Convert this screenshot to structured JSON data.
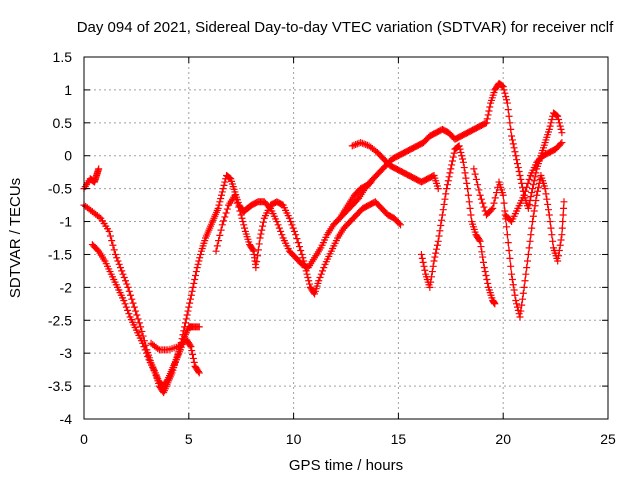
{
  "chart_data": {
    "type": "scatter",
    "title": "Day 094 of 2021, Sidereal Day-to-day VTEC variation (SDTVAR) for receiver nclf",
    "xlabel": "GPS time / hours",
    "ylabel": "SDTVAR / TECUs",
    "xlim": [
      0,
      25
    ],
    "ylim": [
      -4,
      1.5
    ],
    "xticks": [
      "0",
      "5",
      "10",
      "15",
      "20",
      "25"
    ],
    "yticks": [
      "-4",
      "-3.5",
      "-3",
      "-2.5",
      "-2",
      "-1.5",
      "-1",
      "-0.5",
      "0",
      "0.5",
      "1",
      "1.5"
    ],
    "grid": true,
    "marker": "+",
    "color": "#ff0000",
    "series": [
      {
        "points": [
          [
            0.0,
            -0.5
          ],
          [
            0.3,
            -0.35
          ],
          [
            0.5,
            -0.4
          ],
          [
            0.6,
            -0.3
          ],
          [
            0.7,
            -0.2
          ]
        ]
      },
      {
        "points": [
          [
            0.0,
            -0.75
          ],
          [
            0.4,
            -0.85
          ],
          [
            0.8,
            -0.95
          ],
          [
            1.2,
            -1.15
          ],
          [
            1.5,
            -1.5
          ],
          [
            1.8,
            -1.75
          ],
          [
            2.1,
            -2.0
          ],
          [
            2.4,
            -2.3
          ],
          [
            2.7,
            -2.6
          ],
          [
            3.0,
            -2.95
          ],
          [
            3.2,
            -3.15
          ],
          [
            3.4,
            -3.3
          ],
          [
            3.6,
            -3.45
          ],
          [
            3.8,
            -3.5
          ],
          [
            4.0,
            -3.4
          ],
          [
            4.2,
            -3.25
          ],
          [
            4.4,
            -3.1
          ],
          [
            4.6,
            -2.9
          ],
          [
            4.8,
            -2.6
          ],
          [
            5.0,
            -2.3
          ],
          [
            5.2,
            -2.0
          ],
          [
            5.4,
            -1.7
          ],
          [
            5.6,
            -1.45
          ],
          [
            5.8,
            -1.25
          ],
          [
            6.0,
            -1.1
          ],
          [
            6.2,
            -0.95
          ],
          [
            6.4,
            -0.8
          ],
          [
            6.6,
            -0.55
          ],
          [
            6.8,
            -0.3
          ],
          [
            7.0,
            -0.35
          ],
          [
            7.2,
            -0.55
          ],
          [
            7.4,
            -0.75
          ],
          [
            7.6,
            -0.85
          ],
          [
            7.8,
            -0.8
          ],
          [
            8.0,
            -0.75
          ],
          [
            8.3,
            -0.7
          ],
          [
            8.6,
            -0.7
          ],
          [
            8.9,
            -0.8
          ],
          [
            9.2,
            -1.0
          ],
          [
            9.5,
            -1.25
          ],
          [
            9.8,
            -1.45
          ],
          [
            10.1,
            -1.55
          ],
          [
            10.4,
            -1.65
          ],
          [
            10.7,
            -1.7
          ],
          [
            11.0,
            -1.55
          ],
          [
            11.3,
            -1.4
          ],
          [
            11.6,
            -1.2
          ],
          [
            11.9,
            -1.05
          ],
          [
            12.2,
            -0.95
          ],
          [
            12.5,
            -0.85
          ],
          [
            12.8,
            -0.75
          ],
          [
            13.1,
            -0.65
          ],
          [
            13.4,
            -0.5
          ],
          [
            13.7,
            -0.4
          ]
        ]
      },
      {
        "points": [
          [
            0.4,
            -1.35
          ],
          [
            0.7,
            -1.45
          ],
          [
            1.0,
            -1.6
          ],
          [
            1.3,
            -1.8
          ],
          [
            1.6,
            -2.0
          ],
          [
            1.9,
            -2.2
          ],
          [
            2.2,
            -2.45
          ],
          [
            2.5,
            -2.65
          ],
          [
            2.8,
            -2.85
          ],
          [
            3.1,
            -3.1
          ],
          [
            3.4,
            -3.3
          ],
          [
            3.6,
            -3.5
          ],
          [
            3.8,
            -3.6
          ],
          [
            4.0,
            -3.45
          ],
          [
            4.2,
            -3.3
          ],
          [
            4.4,
            -3.1
          ],
          [
            4.6,
            -2.95
          ],
          [
            4.8,
            -2.75
          ],
          [
            5.0,
            -2.6
          ],
          [
            5.2,
            -2.6
          ],
          [
            5.5,
            -2.6
          ]
        ]
      },
      {
        "points": [
          [
            3.2,
            -2.85
          ],
          [
            3.6,
            -2.95
          ],
          [
            4.0,
            -2.95
          ],
          [
            4.5,
            -2.9
          ],
          [
            4.9,
            -2.8
          ],
          [
            5.1,
            -2.9
          ],
          [
            5.3,
            -3.2
          ],
          [
            5.5,
            -3.3
          ]
        ]
      },
      {
        "points": [
          [
            6.3,
            -1.45
          ],
          [
            6.6,
            -1.05
          ],
          [
            6.9,
            -0.75
          ],
          [
            7.2,
            -0.6
          ],
          [
            7.5,
            -0.9
          ],
          [
            7.7,
            -1.15
          ],
          [
            7.9,
            -1.35
          ],
          [
            8.1,
            -1.45
          ],
          [
            8.2,
            -1.7
          ],
          [
            8.4,
            -1.25
          ],
          [
            8.6,
            -0.95
          ],
          [
            8.9,
            -0.75
          ],
          [
            9.2,
            -0.7
          ],
          [
            9.5,
            -0.75
          ],
          [
            9.8,
            -0.95
          ],
          [
            10.1,
            -1.2
          ],
          [
            10.4,
            -1.5
          ],
          [
            10.6,
            -1.75
          ],
          [
            10.8,
            -2.0
          ],
          [
            11.0,
            -2.1
          ],
          [
            11.2,
            -1.9
          ],
          [
            11.5,
            -1.65
          ],
          [
            11.8,
            -1.45
          ],
          [
            12.1,
            -1.25
          ],
          [
            12.4,
            -1.1
          ],
          [
            12.7,
            -1.0
          ],
          [
            13.0,
            -0.9
          ],
          [
            13.3,
            -0.8
          ],
          [
            13.6,
            -0.75
          ],
          [
            13.9,
            -0.7
          ],
          [
            14.2,
            -0.8
          ],
          [
            14.5,
            -0.9
          ],
          [
            14.8,
            -0.95
          ],
          [
            15.1,
            -1.05
          ]
        ]
      },
      {
        "points": [
          [
            12.3,
            -0.9
          ],
          [
            12.6,
            -0.75
          ],
          [
            12.9,
            -0.6
          ],
          [
            13.2,
            -0.5
          ],
          [
            13.5,
            -0.45
          ],
          [
            13.8,
            -0.35
          ],
          [
            14.1,
            -0.25
          ],
          [
            14.4,
            -0.15
          ],
          [
            14.7,
            -0.05
          ],
          [
            15.0,
            0.0
          ],
          [
            15.3,
            0.05
          ],
          [
            15.6,
            0.1
          ],
          [
            15.9,
            0.15
          ],
          [
            16.2,
            0.2
          ],
          [
            16.5,
            0.3
          ],
          [
            16.8,
            0.35
          ],
          [
            17.1,
            0.4
          ],
          [
            17.4,
            0.35
          ],
          [
            17.7,
            0.25
          ],
          [
            18.0,
            0.3
          ],
          [
            18.3,
            0.35
          ],
          [
            18.6,
            0.4
          ],
          [
            18.9,
            0.45
          ],
          [
            19.2,
            0.5
          ],
          [
            19.4,
            0.8
          ],
          [
            19.6,
            1.0
          ],
          [
            19.8,
            1.1
          ],
          [
            20.0,
            1.05
          ],
          [
            20.2,
            0.8
          ],
          [
            20.4,
            0.3
          ],
          [
            20.6,
            0.0
          ],
          [
            20.8,
            -0.3
          ],
          [
            21.0,
            -0.6
          ],
          [
            21.2,
            -0.8
          ],
          [
            21.4,
            -0.5
          ],
          [
            21.6,
            -0.2
          ],
          [
            21.8,
            0.0
          ],
          [
            22.0,
            0.2
          ],
          [
            22.2,
            0.4
          ],
          [
            22.4,
            0.65
          ],
          [
            22.6,
            0.6
          ],
          [
            22.8,
            0.35
          ]
        ]
      },
      {
        "points": [
          [
            12.8,
            0.15
          ],
          [
            13.2,
            0.2
          ],
          [
            13.6,
            0.15
          ],
          [
            14.0,
            0.05
          ],
          [
            14.3,
            -0.05
          ],
          [
            14.6,
            -0.15
          ],
          [
            14.9,
            -0.2
          ],
          [
            15.2,
            -0.25
          ],
          [
            15.5,
            -0.3
          ],
          [
            15.8,
            -0.35
          ],
          [
            16.1,
            -0.4
          ],
          [
            16.4,
            -0.35
          ],
          [
            16.7,
            -0.3
          ],
          [
            16.9,
            -0.5
          ]
        ]
      },
      {
        "points": [
          [
            16.1,
            -1.5
          ],
          [
            16.3,
            -1.8
          ],
          [
            16.5,
            -2.0
          ],
          [
            16.7,
            -1.6
          ],
          [
            16.9,
            -1.3
          ],
          [
            17.1,
            -0.9
          ],
          [
            17.3,
            -0.5
          ],
          [
            17.5,
            -0.2
          ],
          [
            17.7,
            0.1
          ],
          [
            17.9,
            0.15
          ],
          [
            18.1,
            -0.1
          ],
          [
            18.3,
            -0.5
          ],
          [
            18.5,
            -1.0
          ],
          [
            18.7,
            -1.2
          ],
          [
            18.9,
            -1.3
          ],
          [
            19.1,
            -1.7
          ],
          [
            19.3,
            -2.0
          ],
          [
            19.5,
            -2.2
          ],
          [
            19.6,
            -2.25
          ]
        ]
      },
      {
        "points": [
          [
            18.6,
            -0.2
          ],
          [
            18.9,
            -0.6
          ],
          [
            19.2,
            -0.9
          ],
          [
            19.5,
            -0.8
          ],
          [
            19.8,
            -0.4
          ],
          [
            20.0,
            -0.6
          ],
          [
            20.2,
            -1.2
          ],
          [
            20.4,
            -1.8
          ],
          [
            20.6,
            -2.2
          ],
          [
            20.8,
            -2.45
          ],
          [
            21.0,
            -2.0
          ],
          [
            21.2,
            -1.5
          ],
          [
            21.4,
            -1.0
          ],
          [
            21.6,
            -0.6
          ],
          [
            21.8,
            -0.3
          ],
          [
            22.0,
            -0.5
          ],
          [
            22.2,
            -0.9
          ],
          [
            22.4,
            -1.4
          ],
          [
            22.6,
            -1.6
          ],
          [
            22.8,
            -1.2
          ],
          [
            22.9,
            -0.7
          ]
        ]
      },
      {
        "points": [
          [
            20.1,
            -0.9
          ],
          [
            20.4,
            -1.0
          ],
          [
            20.7,
            -0.8
          ],
          [
            21.0,
            -0.6
          ],
          [
            21.3,
            -0.3
          ],
          [
            21.6,
            -0.1
          ],
          [
            21.9,
            0.0
          ],
          [
            22.2,
            0.05
          ],
          [
            22.5,
            0.1
          ],
          [
            22.8,
            0.2
          ]
        ]
      }
    ]
  }
}
